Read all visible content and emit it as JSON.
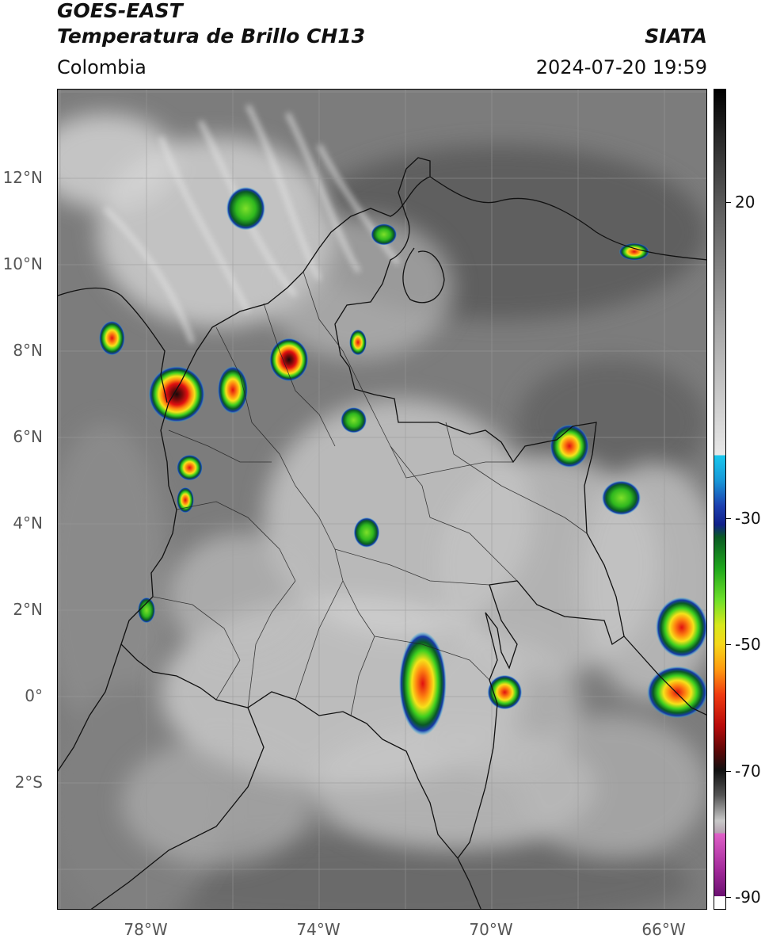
{
  "header": {
    "title_line1": "GOES-EAST",
    "title_line2": "Temperatura de Brillo CH13",
    "region": "Colombia",
    "agency": "SIATA",
    "timestamp": "2024-07-20 19:59"
  },
  "map": {
    "lat_labels": [
      {
        "value": 12,
        "text": "12°N"
      },
      {
        "value": 10,
        "text": "10°N"
      },
      {
        "value": 8,
        "text": "8°N"
      },
      {
        "value": 6,
        "text": "6°N"
      },
      {
        "value": 4,
        "text": "4°N"
      },
      {
        "value": 2,
        "text": "2°N"
      },
      {
        "value": 0,
        "text": "0°"
      },
      {
        "value": -2,
        "text": "2°S"
      }
    ],
    "lon_labels": [
      {
        "value": -78,
        "text": "78°W"
      },
      {
        "value": -74,
        "text": "74°W"
      },
      {
        "value": -70,
        "text": "70°W"
      },
      {
        "value": -66,
        "text": "66°W"
      }
    ],
    "lon_range": [
      -80,
      -65
    ],
    "lat_range": [
      -5,
      14
    ],
    "storms": [
      {
        "name": "storm-uraba",
        "lon": -77.3,
        "lat": 7.0,
        "r_lon": 0.65,
        "r_lat": 0.65,
        "min_temp": -75
      },
      {
        "name": "storm-antioquia-n",
        "lon": -76.0,
        "lat": 7.1,
        "r_lon": 0.35,
        "r_lat": 0.55,
        "min_temp": -60
      },
      {
        "name": "storm-magdalena-medio",
        "lon": -74.7,
        "lat": 7.8,
        "r_lon": 0.45,
        "r_lat": 0.5,
        "min_temp": -70
      },
      {
        "name": "storm-choco-1",
        "lon": -77.0,
        "lat": 5.3,
        "r_lon": 0.3,
        "r_lat": 0.3,
        "min_temp": -60
      },
      {
        "name": "storm-choco-2",
        "lon": -77.1,
        "lat": 4.55,
        "r_lon": 0.2,
        "r_lat": 0.3,
        "min_temp": -55
      },
      {
        "name": "storm-caqueta",
        "lon": -71.6,
        "lat": 0.3,
        "r_lon": 0.55,
        "r_lat": 1.2,
        "min_temp": -62
      },
      {
        "name": "storm-vaupes",
        "lon": -69.7,
        "lat": 0.1,
        "r_lon": 0.4,
        "r_lat": 0.4,
        "min_temp": -55
      },
      {
        "name": "storm-brazil-e",
        "lon": -65.7,
        "lat": 0.1,
        "r_lon": 0.7,
        "r_lat": 0.6,
        "min_temp": -62
      },
      {
        "name": "storm-vichada",
        "lon": -68.2,
        "lat": 5.8,
        "r_lon": 0.45,
        "r_lat": 0.5,
        "min_temp": -55
      },
      {
        "name": "storm-darien",
        "lon": -78.8,
        "lat": 8.3,
        "r_lon": 0.3,
        "r_lat": 0.4,
        "min_temp": -50
      },
      {
        "name": "storm-santander",
        "lon": -73.1,
        "lat": 8.2,
        "r_lon": 0.2,
        "r_lat": 0.3,
        "min_temp": -55
      },
      {
        "name": "storm-llanos",
        "lon": -72.9,
        "lat": 3.8,
        "r_lon": 0.3,
        "r_lat": 0.35,
        "min_temp": -40
      },
      {
        "name": "storm-arauca",
        "lon": -73.2,
        "lat": 6.4,
        "r_lon": 0.3,
        "r_lat": 0.3,
        "min_temp": -40
      },
      {
        "name": "storm-caribe",
        "lon": -75.7,
        "lat": 11.3,
        "r_lon": 0.45,
        "r_lat": 0.5,
        "min_temp": -40
      },
      {
        "name": "storm-guajira",
        "lon": -72.5,
        "lat": 10.7,
        "r_lon": 0.3,
        "r_lat": 0.25,
        "min_temp": -45
      },
      {
        "name": "storm-nariño",
        "lon": -78.0,
        "lat": 2.0,
        "r_lon": 0.2,
        "r_lat": 0.3,
        "min_temp": -45
      },
      {
        "name": "storm-venezuela-1",
        "lon": -67.0,
        "lat": 4.6,
        "r_lon": 0.45,
        "r_lat": 0.4,
        "min_temp": -45
      },
      {
        "name": "storm-venezuela-2",
        "lon": -65.6,
        "lat": 1.6,
        "r_lon": 0.6,
        "r_lat": 0.7,
        "min_temp": -55
      },
      {
        "name": "storm-venezuela-3",
        "lon": -66.7,
        "lat": 10.3,
        "r_lon": 0.35,
        "r_lat": 0.2,
        "min_temp": -50
      }
    ]
  },
  "colorbar": {
    "ticks": [
      {
        "value": 20,
        "text": "20"
      },
      {
        "value": -30,
        "text": "-30"
      },
      {
        "value": -50,
        "text": "-50"
      },
      {
        "value": -70,
        "text": "-70"
      },
      {
        "value": -90,
        "text": "-90"
      }
    ],
    "range": [
      -92,
      38
    ]
  }
}
